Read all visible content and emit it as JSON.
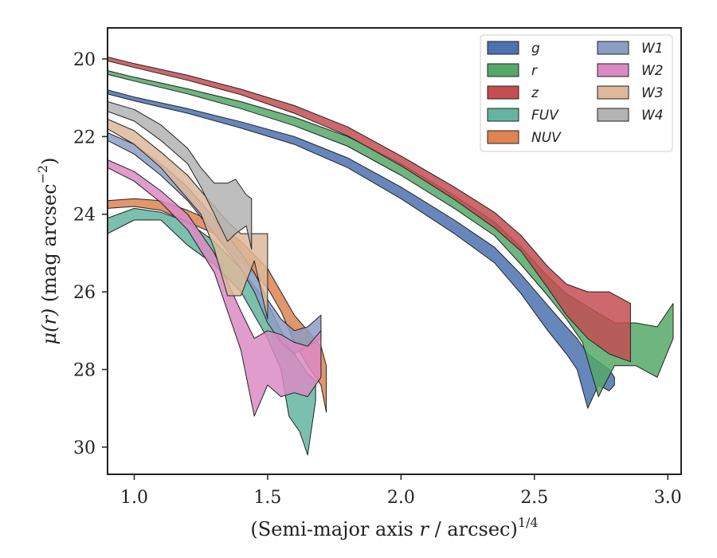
{
  "chart_data": {
    "type": "area",
    "xlabel_main": "(Semi-major axis ",
    "xlabel_var": "r",
    "xlabel_tail": " / arcsec)",
    "xlabel_sup": "1/4",
    "ylabel_var": "μ(r)",
    "ylabel_tail": " (mag arcsec",
    "ylabel_sup": "−2",
    "ylabel_close": ")",
    "xlim": [
      0.9,
      3.05
    ],
    "ylim": [
      19.2,
      30.7
    ],
    "y_inverted": true,
    "xticks": [
      1.0,
      1.5,
      2.0,
      2.5,
      3.0
    ],
    "xtick_labels": [
      "1.0",
      "1.5",
      "2.0",
      "2.5",
      "3.0"
    ],
    "yticks": [
      20,
      22,
      24,
      26,
      28,
      30
    ],
    "ytick_labels": [
      "20",
      "22",
      "24",
      "26",
      "28",
      "30"
    ],
    "grid": false,
    "legend_placement": "top-right",
    "legend_columns": 2,
    "series": [
      {
        "name": "g",
        "color": "#4c72b0",
        "x": [
          0.9,
          1.0,
          1.2,
          1.4,
          1.6,
          1.8,
          2.0,
          2.2,
          2.35,
          2.45,
          2.55,
          2.62,
          2.66,
          2.7,
          2.74,
          2.78,
          2.8
        ],
        "lo": [
          20.8,
          20.98,
          21.28,
          21.62,
          22.0,
          22.55,
          23.3,
          24.15,
          24.85,
          25.55,
          26.35,
          26.9,
          27.2,
          27.6,
          27.8,
          28.0,
          28.2
        ],
        "hi": [
          20.9,
          21.08,
          21.4,
          21.78,
          22.2,
          22.8,
          23.6,
          24.5,
          25.25,
          26.05,
          27.0,
          27.6,
          28.0,
          29.0,
          28.4,
          28.55,
          28.4
        ]
      },
      {
        "name": "r",
        "color": "#55a868",
        "x": [
          0.9,
          1.0,
          1.2,
          1.4,
          1.6,
          1.8,
          2.0,
          2.2,
          2.35,
          2.45,
          2.55,
          2.62,
          2.68,
          2.74,
          2.8,
          2.88,
          2.96,
          3.02
        ],
        "lo": [
          20.3,
          20.47,
          20.77,
          21.1,
          21.5,
          22.0,
          22.7,
          23.52,
          24.2,
          24.85,
          25.6,
          26.05,
          26.3,
          26.55,
          26.8,
          26.8,
          26.9,
          26.3
        ],
        "hi": [
          20.4,
          20.57,
          20.9,
          21.28,
          21.72,
          22.25,
          23.0,
          23.85,
          24.55,
          25.3,
          26.1,
          26.7,
          27.3,
          28.7,
          27.9,
          27.9,
          28.2,
          27.2
        ]
      },
      {
        "name": "z",
        "color": "#c44e52",
        "x": [
          0.9,
          1.0,
          1.2,
          1.4,
          1.6,
          1.8,
          2.0,
          2.2,
          2.35,
          2.45,
          2.55,
          2.62,
          2.7,
          2.78,
          2.86
        ],
        "lo": [
          19.95,
          20.12,
          20.42,
          20.78,
          21.2,
          21.75,
          22.5,
          23.3,
          23.95,
          24.55,
          25.35,
          25.8,
          26.0,
          26.0,
          26.3
        ],
        "hi": [
          20.05,
          20.22,
          20.55,
          20.92,
          21.4,
          21.98,
          22.75,
          23.62,
          24.35,
          24.95,
          25.9,
          26.6,
          27.2,
          27.6,
          27.8
        ]
      },
      {
        "name": "FUV",
        "color": "#64b5a0",
        "x": [
          0.9,
          1.0,
          1.1,
          1.2,
          1.3,
          1.4,
          1.5,
          1.55,
          1.58,
          1.62,
          1.65,
          1.68
        ],
        "lo": [
          24.1,
          23.85,
          23.95,
          24.2,
          24.7,
          25.4,
          26.3,
          27.0,
          27.4,
          27.8,
          28.1,
          28.3
        ],
        "hi": [
          24.5,
          24.15,
          24.15,
          24.8,
          25.3,
          26.0,
          27.2,
          28.0,
          29.2,
          29.6,
          30.2,
          28.8
        ]
      },
      {
        "name": "NUV",
        "color": "#dd8452",
        "x": [
          0.9,
          1.0,
          1.1,
          1.2,
          1.3,
          1.4,
          1.5,
          1.55,
          1.6,
          1.65,
          1.7,
          1.72
        ],
        "lo": [
          23.65,
          23.6,
          23.65,
          23.9,
          24.2,
          24.7,
          25.4,
          26.0,
          26.6,
          27.0,
          27.4,
          27.9
        ],
        "hi": [
          23.85,
          23.8,
          23.9,
          24.2,
          24.5,
          25.2,
          25.9,
          26.5,
          27.3,
          27.9,
          28.4,
          29.1
        ]
      },
      {
        "name": "W1",
        "color": "#8c9dc4",
        "x": [
          0.9,
          1.0,
          1.1,
          1.2,
          1.3,
          1.4,
          1.45,
          1.5,
          1.55,
          1.6,
          1.65,
          1.7
        ],
        "lo": [
          21.9,
          22.2,
          22.7,
          23.3,
          24.1,
          25.0,
          25.5,
          26.2,
          26.7,
          27.0,
          26.9,
          26.6
        ],
        "hi": [
          22.1,
          22.45,
          23.0,
          23.65,
          24.5,
          25.4,
          26.0,
          26.8,
          27.3,
          27.6,
          27.4,
          27.2
        ]
      },
      {
        "name": "W2",
        "color": "#da8bc3",
        "x": [
          0.9,
          1.0,
          1.1,
          1.2,
          1.3,
          1.4,
          1.45,
          1.5,
          1.55,
          1.6,
          1.65,
          1.7
        ],
        "lo": [
          22.6,
          22.9,
          23.4,
          24.0,
          25.0,
          26.5,
          27.2,
          27.0,
          27.1,
          27.3,
          27.4,
          27.0
        ],
        "hi": [
          22.8,
          23.15,
          23.7,
          24.4,
          25.5,
          27.5,
          29.2,
          28.4,
          28.7,
          28.6,
          28.7,
          28.2
        ]
      },
      {
        "name": "W3",
        "color": "#ddb99a",
        "x": [
          0.9,
          1.0,
          1.1,
          1.2,
          1.25,
          1.3,
          1.35,
          1.4,
          1.45,
          1.5
        ],
        "lo": [
          21.55,
          21.85,
          22.4,
          23.0,
          23.4,
          23.8,
          24.2,
          24.5,
          24.5,
          24.5
        ],
        "hi": [
          21.8,
          22.2,
          22.8,
          23.6,
          24.0,
          24.9,
          26.1,
          26.1,
          25.2,
          26.7
        ]
      },
      {
        "name": "W4",
        "color": "#b3b3b3",
        "x": [
          0.9,
          1.0,
          1.1,
          1.2,
          1.25,
          1.3,
          1.35,
          1.38,
          1.42,
          1.44
        ],
        "lo": [
          21.1,
          21.3,
          21.7,
          22.3,
          22.8,
          23.2,
          23.2,
          23.1,
          23.5,
          23.6
        ],
        "hi": [
          21.35,
          21.6,
          22.1,
          22.7,
          23.3,
          24.0,
          24.7,
          24.5,
          24.3,
          24.9
        ]
      }
    ]
  }
}
